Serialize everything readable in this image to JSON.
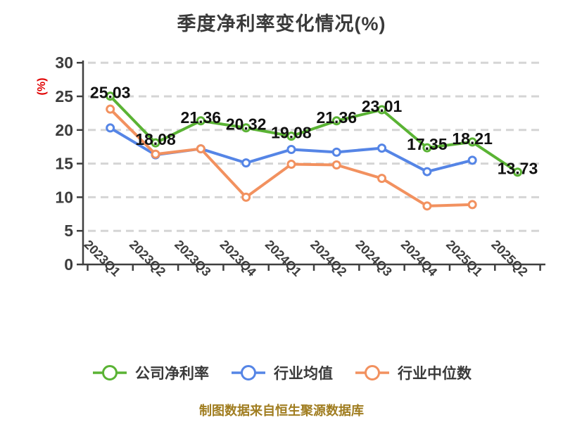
{
  "title": "季度净利率变化情况(%)",
  "y_unit_label": "(%)",
  "footer": "制图数据来自恒生聚源数据库",
  "colors": {
    "company_series": "#5ab334",
    "industry_mean_series": "#5585e6",
    "industry_median_series": "#f2915f",
    "axis": "#3f3f3f",
    "tick_label": "#3d3d3d",
    "gridline": "#d5d5d5",
    "data_label": "#111111",
    "title_text": "#3a3a3a",
    "y_unit_text": "#e00000",
    "footer_text": "#a07d20"
  },
  "chart_data": {
    "type": "line",
    "title": "季度净利率变化情况(%)",
    "categories": [
      "2023Q1",
      "2023Q2",
      "2023Q3",
      "2023Q4",
      "2024Q1",
      "2024Q2",
      "2024Q3",
      "2024Q4",
      "2025Q1",
      "2025Q2"
    ],
    "series": [
      {
        "name": "公司净利率",
        "color": "#5ab334",
        "show_point_labels": true,
        "values": [
          25.03,
          18.08,
          21.36,
          20.32,
          19.08,
          21.36,
          23.01,
          17.35,
          18.21,
          13.73
        ]
      },
      {
        "name": "行业均值",
        "color": "#5585e6",
        "show_point_labels": false,
        "values": [
          20.3,
          16.3,
          17.2,
          15.1,
          17.1,
          16.7,
          17.3,
          13.8,
          15.5,
          null
        ]
      },
      {
        "name": "行业中位数",
        "color": "#f2915f",
        "show_point_labels": false,
        "values": [
          23.1,
          16.4,
          17.2,
          10.0,
          14.9,
          14.8,
          12.8,
          8.7,
          8.9,
          null
        ]
      }
    ],
    "xlabel": "",
    "ylabel": "(%)",
    "ylim": [
      0,
      30
    ],
    "yticks": [
      0,
      5,
      10,
      15,
      20,
      25,
      30
    ],
    "grid": "horizontal-dashed",
    "legend_position": "bottom",
    "marker": "circle-white-fill"
  }
}
